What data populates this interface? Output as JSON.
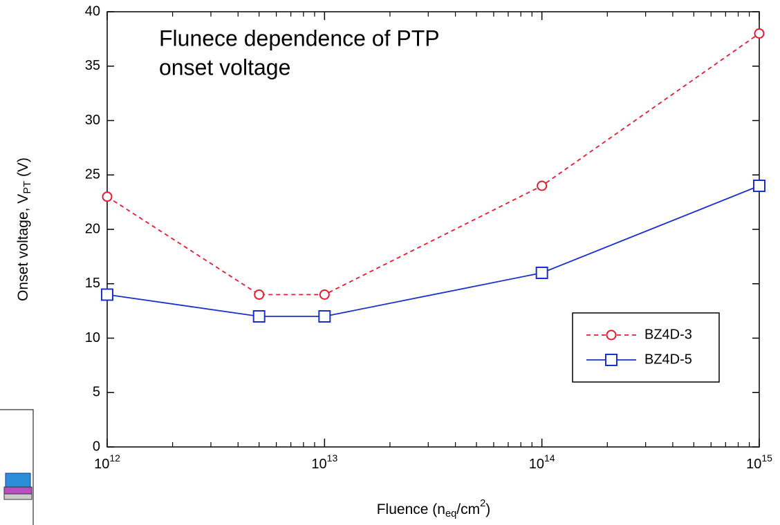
{
  "chart_data": {
    "type": "line",
    "annotation": [
      "Flunece dependence of PTP",
      "onset voltage"
    ],
    "x_label": "Fluence (n_{eq}/cm^{2})",
    "y_label": "Onset voltage, V_{PT} (V)",
    "xscale": "log",
    "x": [
      1000000000000,
      5000000000000,
      10000000000000,
      100000000000000,
      1000000000000000
    ],
    "series": [
      {
        "name": "BZ4D-3",
        "color": "#e8192c",
        "marker": "circle",
        "dashed": true,
        "values": [
          23,
          14,
          14,
          24,
          38
        ]
      },
      {
        "name": "BZ4D-5",
        "color": "#1a2fcf",
        "marker": "square",
        "dashed": false,
        "values": [
          14,
          12,
          12,
          16,
          24
        ]
      }
    ],
    "xlim": [
      1000000000000,
      1000000000000000
    ],
    "xticks": [
      {
        "value": 1000000000000,
        "label": "10^{12}"
      },
      {
        "value": 10000000000000,
        "label": "10^{13}"
      },
      {
        "value": 100000000000000,
        "label": "10^{14}"
      },
      {
        "value": 1000000000000000,
        "label": "10^{15}"
      }
    ],
    "ylim": [
      0,
      40
    ],
    "yticks": [
      0,
      5,
      10,
      15,
      20,
      25,
      30,
      35,
      40
    ],
    "grid": false,
    "legend": "lower right"
  }
}
